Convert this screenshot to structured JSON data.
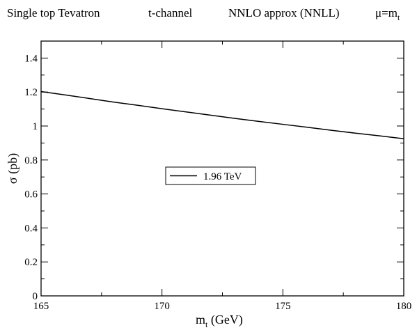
{
  "chart_data": {
    "type": "line",
    "title": {
      "part1": "Single top Tevatron",
      "part2": "t-channel",
      "part3": "NNLO approx (NNLL)",
      "part4_prefix": "μ=m",
      "part4_sub": "t"
    },
    "xlabel": {
      "main": "m",
      "sub": "t",
      "rest": " (GeV)"
    },
    "ylabel": {
      "symbol": "σ",
      "rest": " (pb)"
    },
    "xlim": [
      165,
      180
    ],
    "ylim": [
      0,
      1.5
    ],
    "xticks": [
      165,
      170,
      175,
      180
    ],
    "yticks": [
      0,
      0.2,
      0.4,
      0.6,
      0.8,
      1,
      1.2,
      1.4
    ],
    "xtick_labels": [
      "165",
      "170",
      "175",
      "180"
    ],
    "ytick_labels": [
      "0",
      "0.2",
      "0.4",
      "0.6",
      "0.8",
      "1",
      "1.2",
      "1.4"
    ],
    "grid": false,
    "legend_position": "center-left",
    "series": [
      {
        "name": "1.96 TeV",
        "color": "#000000",
        "x": [
          165,
          166,
          167,
          168,
          169,
          170,
          171,
          172,
          173,
          174,
          175,
          176,
          177,
          178,
          179,
          180
        ],
        "y": [
          1.203,
          1.183,
          1.162,
          1.141,
          1.122,
          1.102,
          1.083,
          1.064,
          1.045,
          1.027,
          1.01,
          0.993,
          0.975,
          0.958,
          0.942,
          0.925
        ]
      }
    ]
  }
}
